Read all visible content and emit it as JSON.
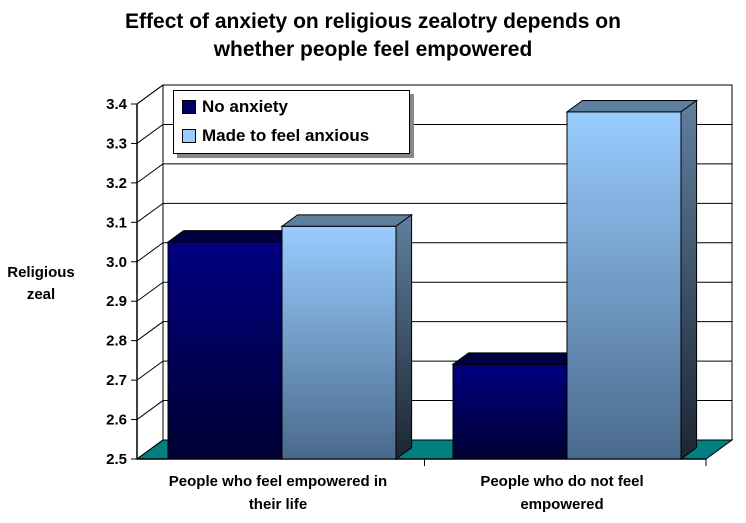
{
  "chart_data": {
    "type": "bar",
    "title_lines": [
      "Effect of anxiety on religious zealotry depends on",
      "whether people feel empowered"
    ],
    "ylabel_lines": [
      "Religious",
      "zeal"
    ],
    "ylim": [
      2.5,
      3.4
    ],
    "yticks": [
      "2.5",
      "2.6",
      "2.7",
      "2.8",
      "2.9",
      "3.0",
      "3.1",
      "3.2",
      "3.3",
      "3.4"
    ],
    "grid": true,
    "legend_position": "top-left",
    "categories": [
      [
        "People who feel empowered in",
        "their life"
      ],
      [
        "People who do not feel",
        "empowered"
      ]
    ],
    "series": [
      {
        "name": "No anxiety",
        "values": [
          3.05,
          2.74
        ],
        "color": "#000066"
      },
      {
        "name": "Made to feel anxious",
        "values": [
          3.09,
          3.38
        ],
        "color": "#99ccff"
      }
    ]
  }
}
